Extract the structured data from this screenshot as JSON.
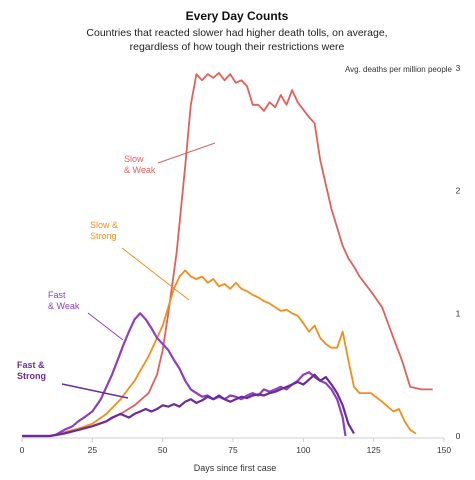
{
  "chart_data": {
    "type": "line",
    "title": "Every Day Counts",
    "subtitle": [
      "Countries that reacted slower had higher death tolls, on average,",
      "regardless of how tough their restrictions were"
    ],
    "ylabel": "Avg. deaths per million people",
    "xlabel": "Days since first case",
    "xlim": [
      0,
      150
    ],
    "ylim": [
      0,
      3
    ],
    "x_ticks": [
      0,
      25,
      50,
      75,
      100,
      125,
      150
    ],
    "x_tick_labels": [
      "0",
      "25",
      "50",
      "75",
      "100",
      "125",
      "150"
    ],
    "y_ticks": [
      0,
      1,
      2,
      3
    ],
    "y_tick_labels": [
      "0",
      "1",
      "2",
      "3"
    ],
    "grid": false,
    "series": [
      {
        "name": "Slow & Weak",
        "label_lines": [
          "Slow",
          "& Weak"
        ],
        "color": "#e0605c",
        "points": [
          [
            0,
            0
          ],
          [
            10,
            0
          ],
          [
            15,
            0.02
          ],
          [
            20,
            0.05
          ],
          [
            25,
            0.08
          ],
          [
            30,
            0.12
          ],
          [
            35,
            0.18
          ],
          [
            40,
            0.25
          ],
          [
            45,
            0.35
          ],
          [
            48,
            0.5
          ],
          [
            50,
            0.7
          ],
          [
            52,
            1.0
          ],
          [
            55,
            1.5
          ],
          [
            58,
            2.2
          ],
          [
            60,
            2.7
          ],
          [
            62,
            2.95
          ],
          [
            64,
            2.9
          ],
          [
            66,
            2.95
          ],
          [
            68,
            2.92
          ],
          [
            70,
            2.96
          ],
          [
            72,
            2.9
          ],
          [
            74,
            2.95
          ],
          [
            76,
            2.88
          ],
          [
            78,
            2.9
          ],
          [
            80,
            2.85
          ],
          [
            82,
            2.7
          ],
          [
            84,
            2.7
          ],
          [
            86,
            2.65
          ],
          [
            88,
            2.72
          ],
          [
            90,
            2.68
          ],
          [
            92,
            2.78
          ],
          [
            94,
            2.7
          ],
          [
            96,
            2.82
          ],
          [
            98,
            2.72
          ],
          [
            100,
            2.66
          ],
          [
            102,
            2.6
          ],
          [
            104,
            2.55
          ],
          [
            106,
            2.25
          ],
          [
            108,
            2.05
          ],
          [
            110,
            1.85
          ],
          [
            112,
            1.7
          ],
          [
            114,
            1.55
          ],
          [
            116,
            1.45
          ],
          [
            118,
            1.38
          ],
          [
            120,
            1.3
          ],
          [
            124,
            1.18
          ],
          [
            128,
            1.05
          ],
          [
            132,
            0.8
          ],
          [
            135,
            0.62
          ],
          [
            138,
            0.4
          ],
          [
            142,
            0.38
          ],
          [
            146,
            0.38
          ]
        ]
      },
      {
        "name": "Slow & Strong",
        "label_lines": [
          "Slow &",
          "Strong"
        ],
        "color": "#f28e1c",
        "points": [
          [
            0,
            0
          ],
          [
            10,
            0
          ],
          [
            15,
            0.03
          ],
          [
            20,
            0.06
          ],
          [
            25,
            0.1
          ],
          [
            30,
            0.18
          ],
          [
            35,
            0.3
          ],
          [
            40,
            0.45
          ],
          [
            45,
            0.65
          ],
          [
            50,
            0.9
          ],
          [
            52,
            1.05
          ],
          [
            54,
            1.2
          ],
          [
            56,
            1.3
          ],
          [
            58,
            1.35
          ],
          [
            60,
            1.3
          ],
          [
            62,
            1.28
          ],
          [
            64,
            1.3
          ],
          [
            66,
            1.25
          ],
          [
            68,
            1.28
          ],
          [
            70,
            1.22
          ],
          [
            72,
            1.24
          ],
          [
            74,
            1.2
          ],
          [
            76,
            1.25
          ],
          [
            78,
            1.2
          ],
          [
            80,
            1.18
          ],
          [
            82,
            1.15
          ],
          [
            84,
            1.13
          ],
          [
            86,
            1.1
          ],
          [
            88,
            1.08
          ],
          [
            90,
            1.05
          ],
          [
            92,
            1.02
          ],
          [
            94,
            1.03
          ],
          [
            96,
            1.0
          ],
          [
            98,
            0.98
          ],
          [
            100,
            0.92
          ],
          [
            102,
            0.85
          ],
          [
            104,
            0.9
          ],
          [
            106,
            0.8
          ],
          [
            108,
            0.75
          ],
          [
            110,
            0.72
          ],
          [
            112,
            0.72
          ],
          [
            114,
            0.85
          ],
          [
            116,
            0.62
          ],
          [
            118,
            0.4
          ],
          [
            120,
            0.35
          ],
          [
            124,
            0.35
          ],
          [
            128,
            0.28
          ],
          [
            132,
            0.2
          ],
          [
            134,
            0.22
          ],
          [
            136,
            0.12
          ],
          [
            138,
            0.05
          ],
          [
            140,
            0.02
          ]
        ]
      },
      {
        "name": "Fast & Weak",
        "label_lines": [
          "Fast",
          "& Weak"
        ],
        "color": "#8e3fbf",
        "points": [
          [
            0,
            0
          ],
          [
            10,
            0
          ],
          [
            12,
            0.01
          ],
          [
            15,
            0.05
          ],
          [
            18,
            0.08
          ],
          [
            20,
            0.12
          ],
          [
            22,
            0.15
          ],
          [
            25,
            0.2
          ],
          [
            28,
            0.3
          ],
          [
            30,
            0.4
          ],
          [
            32,
            0.5
          ],
          [
            34,
            0.62
          ],
          [
            36,
            0.74
          ],
          [
            38,
            0.85
          ],
          [
            40,
            0.95
          ],
          [
            42,
            1.0
          ],
          [
            44,
            0.95
          ],
          [
            46,
            0.88
          ],
          [
            48,
            0.8
          ],
          [
            50,
            0.75
          ],
          [
            52,
            0.7
          ],
          [
            54,
            0.62
          ],
          [
            56,
            0.55
          ],
          [
            58,
            0.45
          ],
          [
            60,
            0.38
          ],
          [
            62,
            0.35
          ],
          [
            64,
            0.32
          ],
          [
            66,
            0.33
          ],
          [
            68,
            0.3
          ],
          [
            70,
            0.32
          ],
          [
            72,
            0.3
          ],
          [
            74,
            0.33
          ],
          [
            76,
            0.32
          ],
          [
            78,
            0.3
          ],
          [
            80,
            0.33
          ],
          [
            82,
            0.35
          ],
          [
            84,
            0.33
          ],
          [
            86,
            0.38
          ],
          [
            88,
            0.36
          ],
          [
            90,
            0.38
          ],
          [
            92,
            0.4
          ],
          [
            94,
            0.38
          ],
          [
            96,
            0.42
          ],
          [
            98,
            0.45
          ],
          [
            100,
            0.5
          ],
          [
            102,
            0.52
          ],
          [
            104,
            0.48
          ],
          [
            106,
            0.45
          ],
          [
            108,
            0.43
          ],
          [
            110,
            0.38
          ],
          [
            112,
            0.3
          ],
          [
            114,
            0.15
          ],
          [
            115,
            0.0
          ]
        ]
      },
      {
        "name": "Fast & Strong",
        "label_lines": [
          "Fast &",
          "Strong"
        ],
        "color": "#6a2c9a",
        "points": [
          [
            0,
            0
          ],
          [
            10,
            0
          ],
          [
            15,
            0.02
          ],
          [
            20,
            0.05
          ],
          [
            25,
            0.08
          ],
          [
            30,
            0.12
          ],
          [
            32,
            0.15
          ],
          [
            35,
            0.18
          ],
          [
            38,
            0.15
          ],
          [
            40,
            0.18
          ],
          [
            42,
            0.2
          ],
          [
            44,
            0.22
          ],
          [
            46,
            0.2
          ],
          [
            48,
            0.22
          ],
          [
            50,
            0.25
          ],
          [
            52,
            0.24
          ],
          [
            54,
            0.26
          ],
          [
            56,
            0.24
          ],
          [
            58,
            0.28
          ],
          [
            60,
            0.3
          ],
          [
            62,
            0.27
          ],
          [
            64,
            0.29
          ],
          [
            66,
            0.32
          ],
          [
            68,
            0.3
          ],
          [
            70,
            0.33
          ],
          [
            72,
            0.3
          ],
          [
            74,
            0.28
          ],
          [
            76,
            0.3
          ],
          [
            78,
            0.32
          ],
          [
            80,
            0.31
          ],
          [
            82,
            0.33
          ],
          [
            84,
            0.34
          ],
          [
            86,
            0.33
          ],
          [
            88,
            0.35
          ],
          [
            90,
            0.36
          ],
          [
            92,
            0.38
          ],
          [
            94,
            0.4
          ],
          [
            96,
            0.42
          ],
          [
            98,
            0.44
          ],
          [
            100,
            0.42
          ],
          [
            102,
            0.46
          ],
          [
            104,
            0.5
          ],
          [
            106,
            0.45
          ],
          [
            108,
            0.48
          ],
          [
            110,
            0.42
          ],
          [
            112,
            0.35
          ],
          [
            114,
            0.25
          ],
          [
            116,
            0.1
          ],
          [
            118,
            0.02
          ]
        ]
      }
    ]
  }
}
